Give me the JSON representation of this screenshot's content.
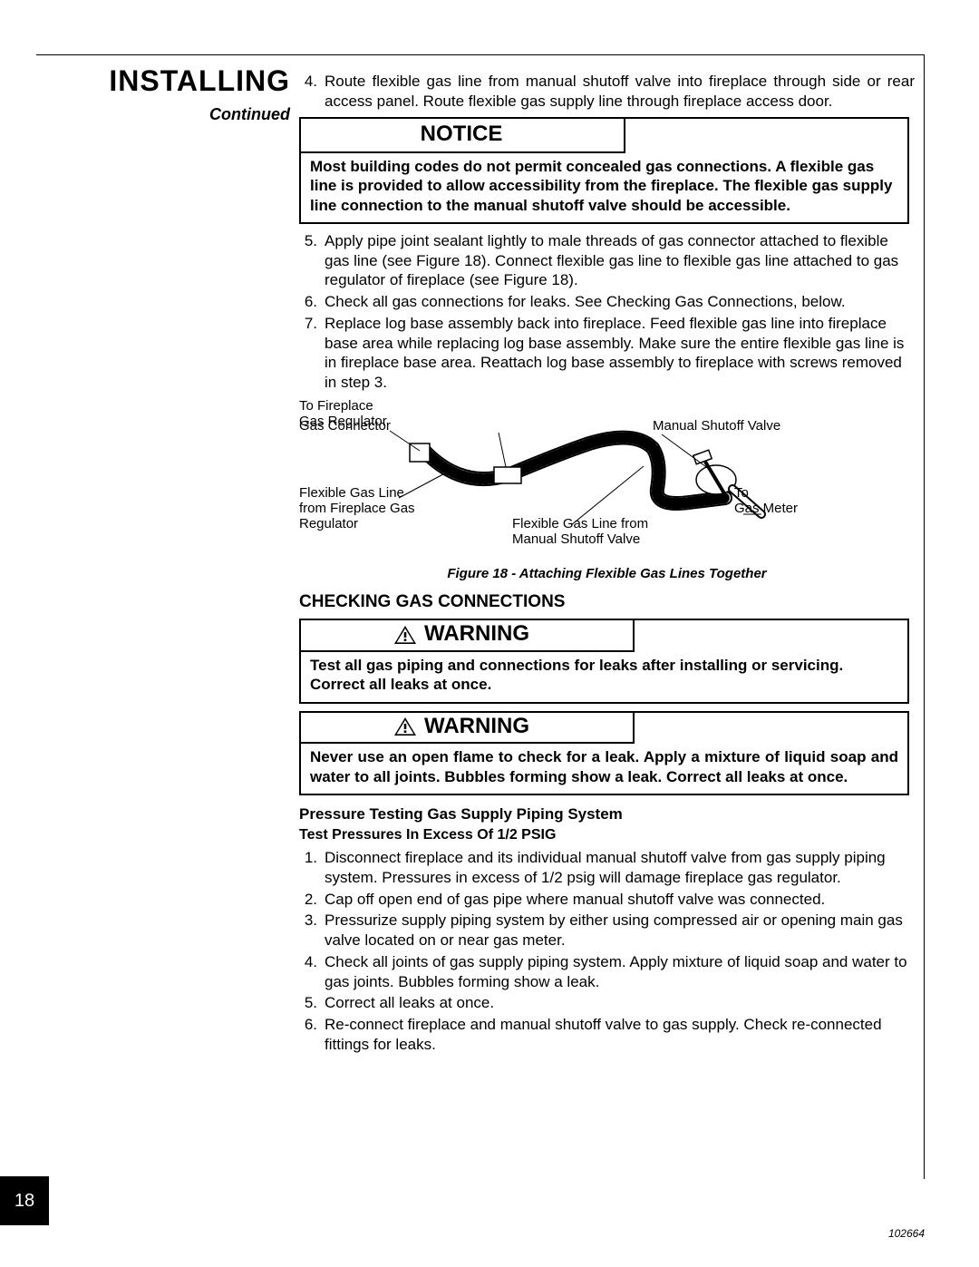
{
  "sidebar": {
    "title": "INSTALLING",
    "subtitle": "Continued"
  },
  "steps_a": [
    {
      "n": "4.",
      "t": "Route flexible gas line from manual shutoff valve into fireplace through side or rear access panel. Route flexible gas supply line through fireplace access door."
    }
  ],
  "notice": {
    "head": "NOTICE",
    "body": "Most building codes do not permit concealed gas connections. A flexible gas line is provided to allow accessibility from the fireplace. The flexible gas supply line connection to the manual shutoff valve should be accessible."
  },
  "steps_b": [
    {
      "n": "5.",
      "t": "Apply pipe joint sealant lightly to male threads of gas connector attached to flexible gas line (see Figure 18). Connect flexible gas line to flexible gas line attached to gas regulator of fireplace (see Figure 18)."
    },
    {
      "n": "6.",
      "t": "Check all gas connections for leaks. See Checking Gas Connections, below."
    },
    {
      "n": "7.",
      "t": "Replace log base assembly back into fireplace. Feed flexible gas line into fireplace base area while replacing log base assembly. Make sure the entire flexible gas line is in fireplace base area. Reattach log base assembly to fireplace with screws removed in step 3."
    }
  ],
  "figure": {
    "caption": "Figure 18 - Attaching Flexible Gas Lines Together",
    "labels": {
      "l1": "To Fireplace\nGas Regulator",
      "l2": "Gas Connector",
      "l3": "Manual Shutoff Valve",
      "l4": "Flexible Gas Line\nfrom Fireplace Gas\nRegulator",
      "l5": "Flexible Gas Line from\nManual Shutoff Valve",
      "l6": "To\nGas Meter"
    }
  },
  "section2": {
    "title": "CHECKING GAS CONNECTIONS"
  },
  "warning1": {
    "head": "WARNING",
    "body": "Test all gas piping and connections for leaks after installing or servicing. Correct all leaks at once."
  },
  "warning2": {
    "head": "WARNING",
    "body": "Never use an open flame to check for a leak. Apply a mixture of liquid soap and water to all joints. Bubbles forming show a leak. Correct all leaks at once."
  },
  "pressure": {
    "title": "Pressure Testing Gas Supply Piping System",
    "subtitle": "Test Pressures In Excess Of 1/2 PSIG",
    "steps": [
      {
        "n": "1.",
        "t": "Disconnect fireplace and its individual manual shutoff valve from gas supply piping system. Pressures in excess of 1/2 psig will damage fireplace gas regulator."
      },
      {
        "n": "2.",
        "t": "Cap off open end of gas pipe where manual shutoff valve was connected."
      },
      {
        "n": "3.",
        "t": "Pressurize supply piping system by either using compressed air or opening main gas valve located on or near gas meter."
      },
      {
        "n": "4.",
        "t": "Check all joints of gas supply piping system. Apply mixture of liquid soap and water to gas joints. Bubbles forming show a leak."
      },
      {
        "n": "5.",
        "t": "Correct all leaks at once."
      },
      {
        "n": "6.",
        "t": "Re-connect fireplace and manual shutoff valve to gas supply. Check re-connected fittings for leaks."
      }
    ]
  },
  "page_number": "18",
  "doc_id": "102664"
}
